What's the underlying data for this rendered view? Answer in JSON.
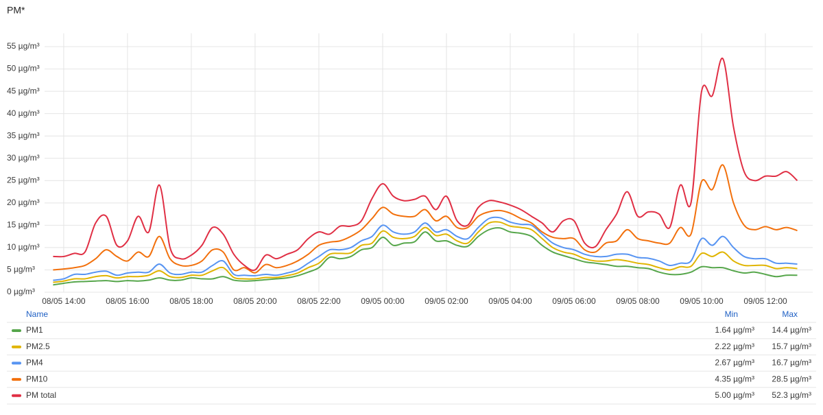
{
  "chart_data": {
    "type": "line",
    "title": "PM*",
    "x": [
      "08/05 13:40",
      "08/05 14:00",
      "08/05 14:20",
      "08/05 14:40",
      "08/05 15:00",
      "08/05 15:20",
      "08/05 15:40",
      "08/05 16:00",
      "08/05 16:20",
      "08/05 16:40",
      "08/05 17:00",
      "08/05 17:20",
      "08/05 17:40",
      "08/05 18:00",
      "08/05 18:20",
      "08/05 18:40",
      "08/05 19:00",
      "08/05 19:20",
      "08/05 19:40",
      "08/05 20:00",
      "08/05 20:20",
      "08/05 20:40",
      "08/05 21:00",
      "08/05 21:20",
      "08/05 21:40",
      "08/05 22:00",
      "08/05 22:20",
      "08/05 22:40",
      "08/05 23:00",
      "08/05 23:20",
      "08/05 23:40",
      "09/05 00:00",
      "09/05 00:20",
      "09/05 00:40",
      "09/05 01:00",
      "09/05 01:20",
      "09/05 01:40",
      "09/05 02:00",
      "09/05 02:20",
      "09/05 02:40",
      "09/05 03:00",
      "09/05 03:20",
      "09/05 03:40",
      "09/05 04:00",
      "09/05 04:20",
      "09/05 04:40",
      "09/05 05:00",
      "09/05 05:20",
      "09/05 05:40",
      "09/05 06:00",
      "09/05 06:20",
      "09/05 06:40",
      "09/05 07:00",
      "09/05 07:20",
      "09/05 07:40",
      "09/05 08:00",
      "09/05 08:20",
      "09/05 08:40",
      "09/05 09:00",
      "09/05 09:20",
      "09/05 09:40",
      "09/05 10:00",
      "09/05 10:20",
      "09/05 10:40",
      "09/05 11:00",
      "09/05 11:20",
      "09/05 11:40",
      "09/05 12:00",
      "09/05 12:20",
      "09/05 12:40",
      "09/05 13:00"
    ],
    "xlim": [
      "08/05 13:24",
      "09/05 13:29"
    ],
    "xticks": [
      "08/05 14:00",
      "08/05 16:00",
      "08/05 18:00",
      "08/05 20:00",
      "08/05 22:00",
      "09/05 00:00",
      "09/05 02:00",
      "09/05 04:00",
      "09/05 06:00",
      "09/05 08:00",
      "09/05 10:00",
      "09/05 12:00"
    ],
    "ylim": [
      0,
      58
    ],
    "yticks": [
      {
        "value": 0,
        "label": "0 µg/m³"
      },
      {
        "value": 5,
        "label": "5 µg/m³"
      },
      {
        "value": 10,
        "label": "10 µg/m³"
      },
      {
        "value": 15,
        "label": "15 µg/m³"
      },
      {
        "value": 20,
        "label": "20 µg/m³"
      },
      {
        "value": 25,
        "label": "25 µg/m³"
      },
      {
        "value": 30,
        "label": "30 µg/m³"
      },
      {
        "value": 35,
        "label": "35 µg/m³"
      },
      {
        "value": 40,
        "label": "40 µg/m³"
      },
      {
        "value": 45,
        "label": "45 µg/m³"
      },
      {
        "value": 50,
        "label": "50 µg/m³"
      },
      {
        "value": 55,
        "label": "55 µg/m³"
      }
    ],
    "grid": true,
    "legend": {
      "columns": [
        "Name",
        "Min",
        "Max"
      ]
    },
    "series": [
      {
        "name": "PM1",
        "color": "#56a64b",
        "min": "1.64 µg/m³",
        "max": "14.4 µg/m³",
        "values": [
          1.64,
          2,
          2.3,
          2.4,
          2.5,
          2.6,
          2.4,
          2.6,
          2.5,
          2.7,
          3.2,
          2.7,
          2.7,
          3.2,
          3,
          3,
          3.5,
          2.7,
          2.5,
          2.6,
          2.8,
          3,
          3.2,
          3.7,
          4.5,
          5.5,
          7.8,
          7.5,
          8,
          9.5,
          10,
          12.3,
          10.5,
          11,
          11.3,
          13.5,
          11.5,
          11.5,
          10.5,
          10.3,
          12.5,
          14,
          14.4,
          13.5,
          13.2,
          12.5,
          10.5,
          9,
          8.2,
          7.5,
          6.8,
          6.5,
          6.2,
          5.8,
          5.8,
          5.5,
          5.3,
          4.5,
          4,
          4,
          4.5,
          5.7,
          5.5,
          5.5,
          4.8,
          4.3,
          4.5,
          4,
          3.5,
          3.8,
          3.8
        ]
      },
      {
        "name": "PM2.5",
        "color": "#e0b400",
        "min": "2.22 µg/m³",
        "max": "15.7 µg/m³",
        "values": [
          2.22,
          2.5,
          3,
          3,
          3.5,
          3.7,
          3.2,
          3.5,
          3.5,
          3.8,
          4.8,
          3.5,
          3.3,
          3.8,
          3.8,
          4.8,
          5.5,
          3.3,
          3,
          3,
          3.3,
          3.3,
          3.7,
          4.3,
          5.5,
          6.5,
          8.5,
          8.7,
          8.8,
          10.5,
          11,
          13.7,
          12.3,
          12,
          12.5,
          14.5,
          12.7,
          13,
          11.5,
          11,
          13.5,
          15.5,
          15.7,
          14.8,
          14.5,
          14,
          12,
          10,
          9,
          8.5,
          7.5,
          7,
          7,
          7.3,
          7,
          6.5,
          6.2,
          5.5,
          5,
          5.7,
          5.8,
          8.7,
          8,
          9,
          7,
          6,
          6,
          6,
          5.3,
          5.5,
          5.3
        ]
      },
      {
        "name": "PM4",
        "color": "#5794f2",
        "min": "2.67 µg/m³",
        "max": "16.7 µg/m³",
        "values": [
          2.67,
          3,
          4,
          4,
          4.5,
          4.7,
          3.8,
          4.3,
          4.5,
          4.5,
          6.3,
          4.3,
          4,
          4.5,
          4.5,
          6,
          7,
          4,
          3.8,
          3.7,
          4,
          3.8,
          4.3,
          5,
          6.5,
          8,
          9.5,
          9.5,
          10,
          11.5,
          12.5,
          15,
          13.5,
          13,
          13.5,
          15.5,
          13.5,
          14,
          12.5,
          12,
          14.5,
          16.5,
          16.7,
          15.7,
          15.2,
          15,
          13,
          11,
          10,
          9.5,
          8.5,
          8,
          8,
          8.5,
          8.5,
          7.8,
          7.6,
          7,
          6,
          6.5,
          7,
          12,
          10.5,
          12.5,
          10,
          8,
          7.5,
          7.5,
          6.5,
          6.5,
          6.3
        ]
      },
      {
        "name": "PM10",
        "color": "#f2700c",
        "min": "4.35 µg/m³",
        "max": "28.5 µg/m³",
        "values": [
          5,
          5.2,
          5.5,
          6,
          7.5,
          9.5,
          8,
          7,
          9,
          8,
          12.5,
          7.5,
          6,
          6,
          7,
          9.5,
          9,
          5,
          5.5,
          4.35,
          6.2,
          5.5,
          6,
          7,
          8.5,
          10.5,
          11.2,
          11.5,
          12.5,
          14,
          16.5,
          19,
          17.5,
          17,
          17,
          18.5,
          16,
          17,
          14.5,
          14.5,
          17,
          18,
          18.3,
          17.7,
          16.5,
          15.5,
          13.5,
          12.3,
          12,
          12,
          9.5,
          9,
          11,
          11.5,
          14,
          12,
          11.5,
          11,
          11,
          14.5,
          13,
          24.8,
          23,
          28.5,
          20,
          15,
          14,
          14.7,
          14,
          14.5,
          13.8
        ]
      },
      {
        "name": "PM total",
        "color": "#e02f44",
        "min": "5.00 µg/m³",
        "max": "52.3 µg/m³",
        "values": [
          8,
          8,
          8.7,
          9,
          15.5,
          17,
          10.5,
          11.5,
          17,
          13.5,
          24,
          10,
          7.5,
          8.3,
          10.5,
          14.5,
          13,
          8.5,
          6,
          5,
          8.3,
          7.5,
          8.5,
          9.5,
          12,
          13.5,
          13,
          14.8,
          14.8,
          16,
          21,
          24.3,
          21.5,
          20.5,
          20.8,
          21.5,
          18.5,
          21.5,
          16,
          15,
          19,
          20.5,
          20.2,
          19.5,
          18.5,
          17,
          15.5,
          13.5,
          16,
          16,
          11,
          10.2,
          14,
          17.5,
          22.5,
          17,
          18,
          17.5,
          14.5,
          24,
          20,
          45,
          44,
          52.3,
          37,
          27,
          25,
          26,
          26,
          27,
          25
        ]
      }
    ]
  }
}
